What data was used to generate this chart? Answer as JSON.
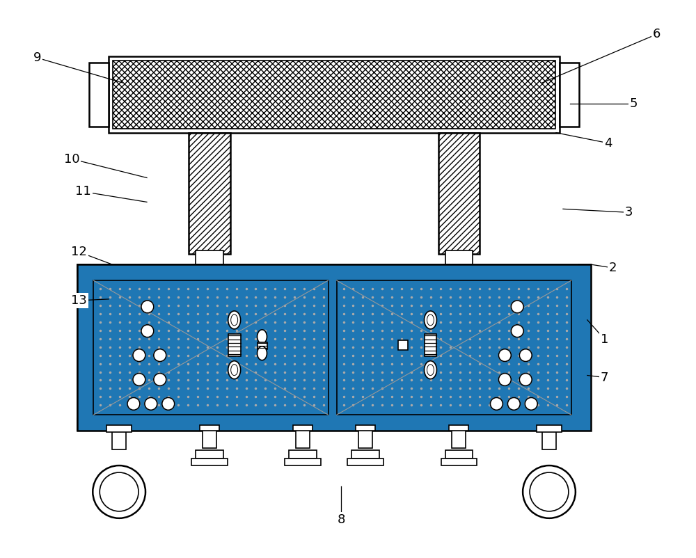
{
  "title": "",
  "bg_color": "#ffffff",
  "line_color": "#000000",
  "figsize": [
    10.0,
    8.02
  ],
  "dpi": 100,
  "labels_data": [
    [
      "6",
      945,
      48,
      780,
      118
    ],
    [
      "5",
      912,
      148,
      820,
      148
    ],
    [
      "4",
      875,
      205,
      800,
      190
    ],
    [
      "9",
      52,
      82,
      175,
      118
    ],
    [
      "10",
      102,
      228,
      210,
      255
    ],
    [
      "11",
      118,
      275,
      210,
      290
    ],
    [
      "3",
      905,
      305,
      810,
      300
    ],
    [
      "2",
      882,
      385,
      850,
      380
    ],
    [
      "1",
      870,
      488,
      845,
      460
    ],
    [
      "7",
      870,
      543,
      845,
      540
    ],
    [
      "12",
      112,
      362,
      160,
      380
    ],
    [
      "13",
      112,
      432,
      155,
      430
    ],
    [
      "8",
      490,
      748,
      490,
      700
    ]
  ]
}
